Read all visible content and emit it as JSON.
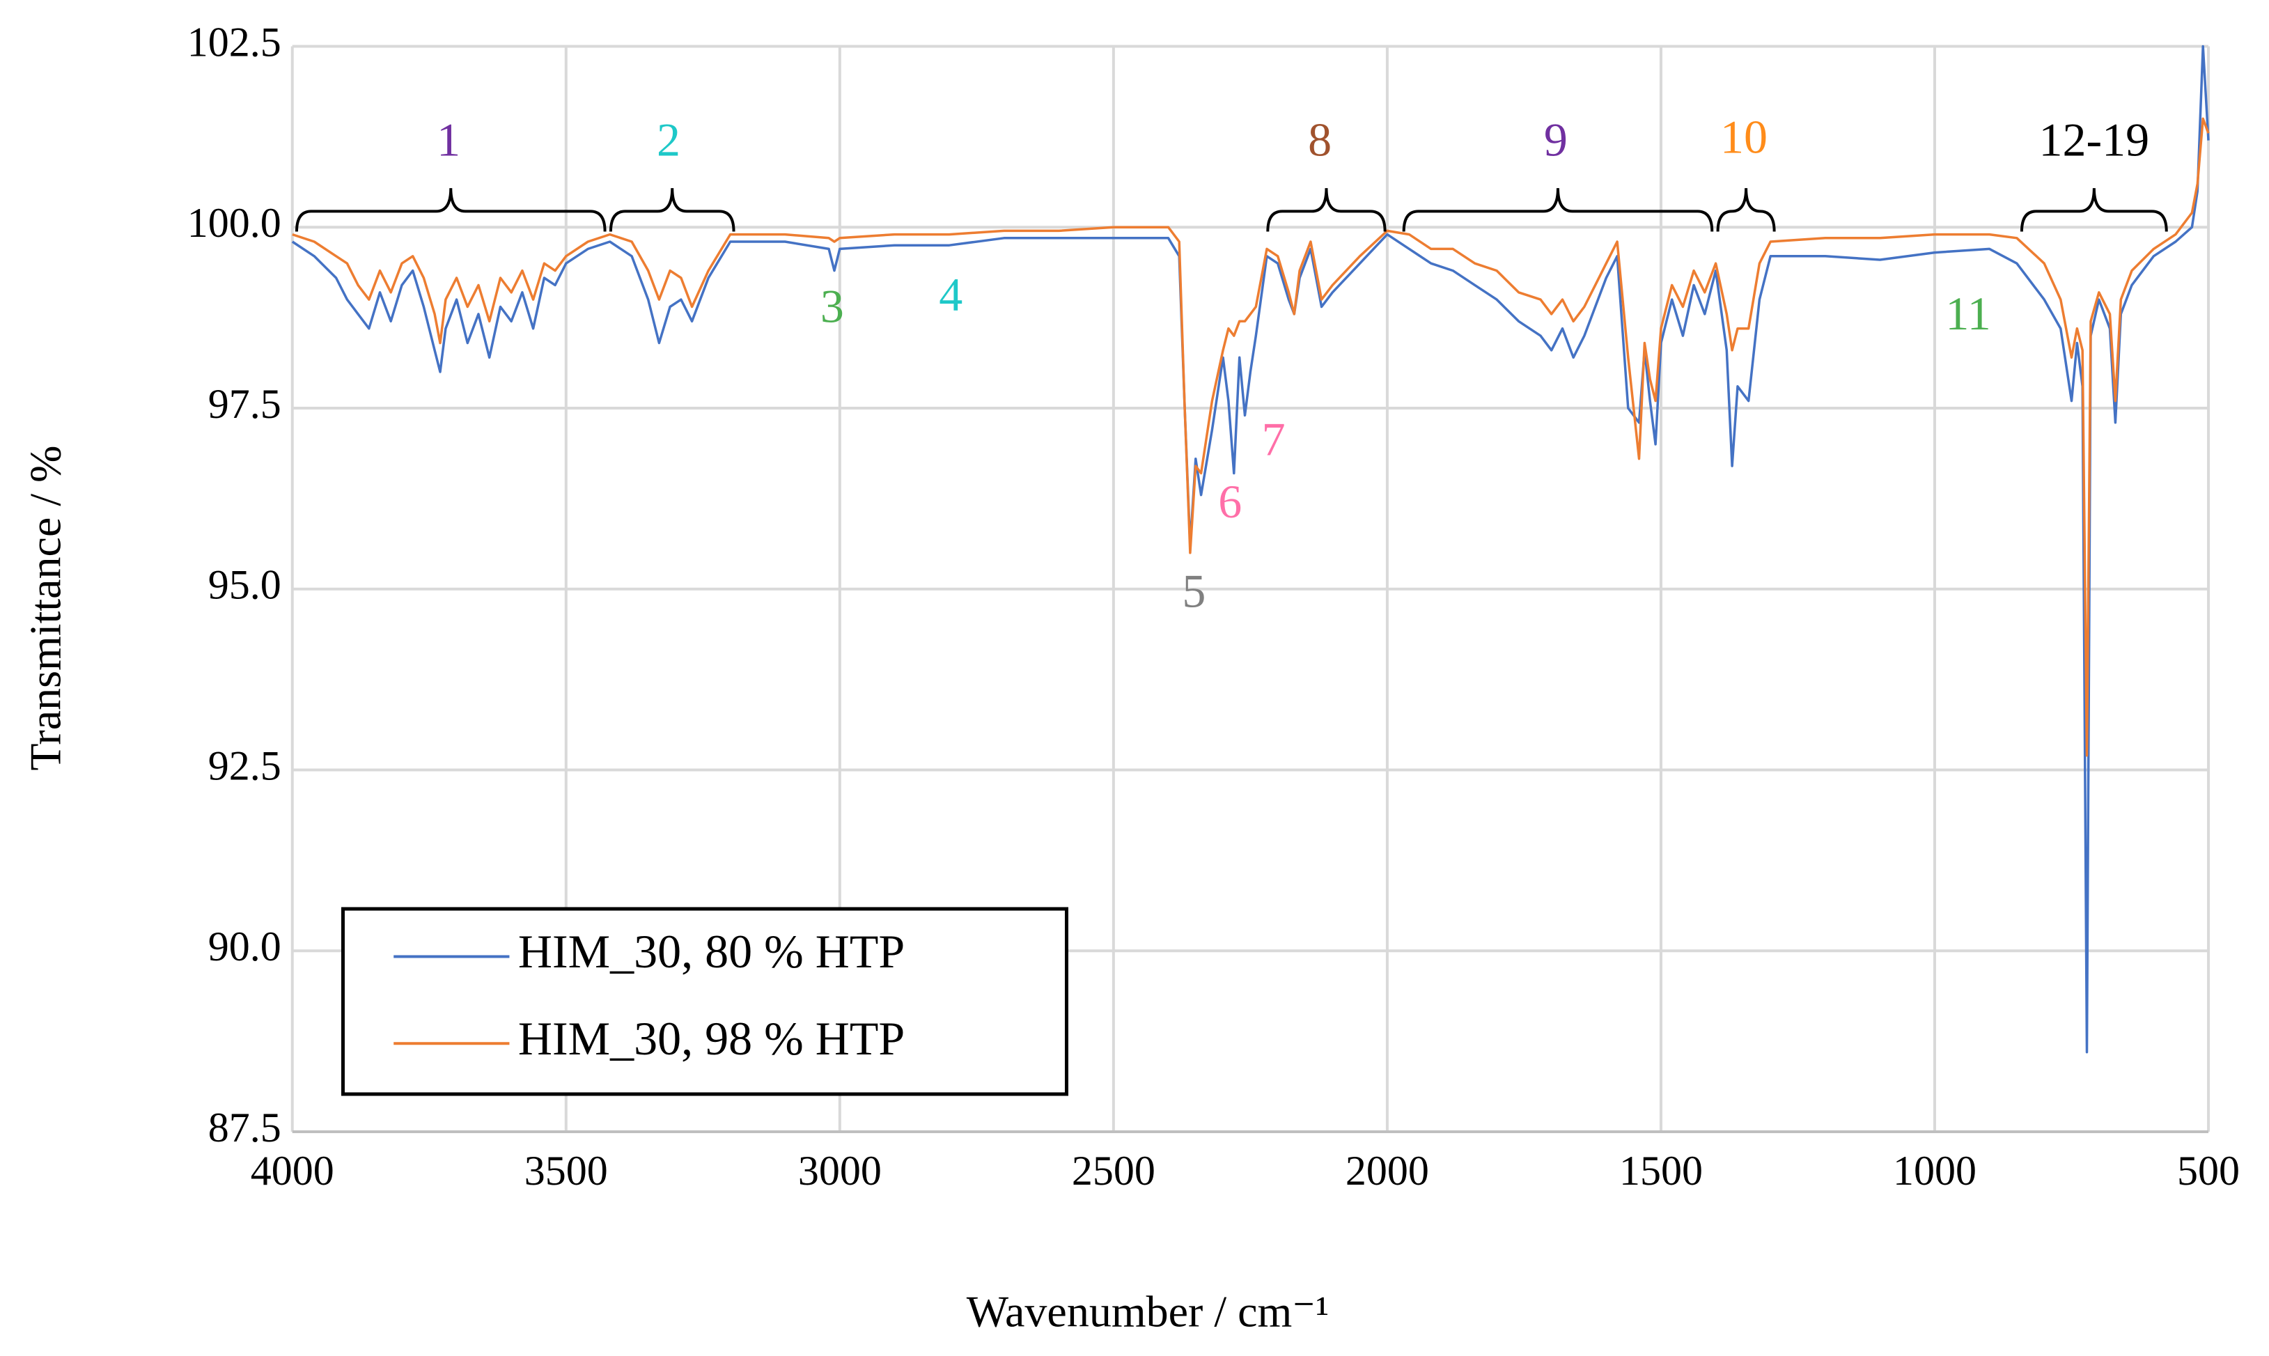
{
  "chart_data": {
    "type": "line",
    "xlabel": "Wavenumber / cm⁻¹",
    "ylabel": "Transmittance / %",
    "x_reversed": true,
    "grid": true,
    "legend": "lower left",
    "xlim": [
      4000,
      500
    ],
    "xticks": [
      4000,
      3500,
      3000,
      2500,
      2000,
      1500,
      1000,
      500
    ],
    "ylim": [
      87.5,
      102.5
    ],
    "yticks": [
      87.5,
      {
        "value": 90,
        "label": "90.0"
      },
      92.5,
      {
        "value": 95,
        "label": "95.0"
      },
      97.5,
      {
        "value": 100,
        "label": "100.0"
      },
      102.5
    ],
    "annotations": [
      {
        "text": "1",
        "color": "#7030a0"
      },
      {
        "text": "2",
        "color": "#1ec8c8"
      },
      {
        "text": "3",
        "color": "#4caf50"
      },
      {
        "text": "4",
        "color": "#1ec8c8"
      },
      {
        "text": "5",
        "color": "#808080"
      },
      {
        "text": "6",
        "color": "#ff6fa8"
      },
      {
        "text": "7",
        "color": "#ff6fa8"
      },
      {
        "text": "8",
        "color": "#a0522d"
      },
      {
        "text": "9",
        "color": "#7030a0"
      },
      {
        "text": "10",
        "color": "#ff8c1a"
      },
      {
        "text": "11",
        "color": "#4caf50"
      },
      {
        "text": "12-19",
        "color": "#000000"
      }
    ],
    "x": [
      4000,
      3960,
      3920,
      3900,
      3880,
      3860,
      3840,
      3820,
      3800,
      3780,
      3760,
      3740,
      3730,
      3720,
      3700,
      3680,
      3660,
      3640,
      3620,
      3600,
      3580,
      3560,
      3540,
      3520,
      3500,
      3460,
      3420,
      3380,
      3350,
      3330,
      3310,
      3290,
      3270,
      3240,
      3200,
      3100,
      3020,
      3010,
      3000,
      2900,
      2800,
      2700,
      2600,
      2500,
      2400,
      2380,
      2370,
      2360,
      2350,
      2340,
      2320,
      2300,
      2290,
      2280,
      2270,
      2260,
      2250,
      2240,
      2220,
      2200,
      2180,
      2170,
      2160,
      2140,
      2120,
      2100,
      2050,
      2000,
      1960,
      1920,
      1880,
      1840,
      1800,
      1760,
      1720,
      1700,
      1680,
      1660,
      1640,
      1620,
      1600,
      1580,
      1560,
      1540,
      1530,
      1520,
      1510,
      1500,
      1480,
      1460,
      1440,
      1420,
      1400,
      1380,
      1370,
      1360,
      1340,
      1320,
      1300,
      1200,
      1100,
      1000,
      900,
      850,
      800,
      770,
      750,
      740,
      730,
      722,
      715,
      700,
      680,
      670,
      660,
      640,
      600,
      560,
      530,
      520,
      510,
      500
    ],
    "series": [
      {
        "name": "HIM_30, 80 % HTP",
        "color": "#4472c4",
        "values": [
          99.8,
          99.6,
          99.3,
          99.0,
          98.8,
          98.6,
          99.1,
          98.7,
          99.2,
          99.4,
          98.9,
          98.3,
          98.0,
          98.6,
          99.0,
          98.4,
          98.8,
          98.2,
          98.9,
          98.7,
          99.1,
          98.6,
          99.3,
          99.2,
          99.5,
          99.7,
          99.8,
          99.6,
          99.0,
          98.4,
          98.9,
          99.0,
          98.7,
          99.3,
          99.8,
          99.8,
          99.7,
          99.4,
          99.7,
          99.75,
          99.75,
          99.85,
          99.85,
          99.85,
          99.85,
          99.6,
          97.5,
          95.6,
          96.8,
          96.3,
          97.2,
          98.2,
          97.6,
          96.6,
          98.2,
          97.4,
          98.0,
          98.5,
          99.6,
          99.5,
          99.0,
          98.8,
          99.3,
          99.7,
          98.9,
          99.1,
          99.5,
          99.9,
          99.7,
          99.5,
          99.4,
          99.2,
          99.0,
          98.7,
          98.5,
          98.3,
          98.6,
          98.2,
          98.5,
          98.9,
          99.3,
          99.6,
          97.5,
          97.3,
          98.3,
          97.6,
          97.0,
          98.4,
          99.0,
          98.5,
          99.2,
          98.8,
          99.4,
          98.3,
          96.7,
          97.8,
          97.6,
          99.0,
          99.6,
          99.6,
          99.55,
          99.65,
          99.7,
          99.5,
          99.0,
          98.6,
          97.6,
          98.4,
          97.8,
          88.6,
          98.5,
          99.0,
          98.6,
          97.3,
          98.8,
          99.2,
          99.6,
          99.8,
          100.0,
          100.5,
          102.5,
          101.2
        ]
      },
      {
        "name": "HIM_30, 98 % HTP",
        "color": "#ed7d31",
        "values": [
          99.9,
          99.8,
          99.6,
          99.5,
          99.2,
          99.0,
          99.4,
          99.1,
          99.5,
          99.6,
          99.3,
          98.8,
          98.4,
          99.0,
          99.3,
          98.9,
          99.2,
          98.7,
          99.3,
          99.1,
          99.4,
          99.0,
          99.5,
          99.4,
          99.6,
          99.8,
          99.9,
          99.8,
          99.4,
          99.0,
          99.4,
          99.3,
          98.9,
          99.4,
          99.9,
          99.9,
          99.85,
          99.8,
          99.85,
          99.9,
          99.9,
          99.95,
          99.95,
          100.0,
          100.0,
          99.8,
          97.5,
          95.5,
          96.7,
          96.6,
          97.6,
          98.3,
          98.6,
          98.5,
          98.7,
          98.7,
          98.8,
          98.9,
          99.7,
          99.6,
          99.1,
          98.8,
          99.4,
          99.8,
          99.0,
          99.2,
          99.6,
          99.95,
          99.9,
          99.7,
          99.7,
          99.5,
          99.4,
          99.1,
          99.0,
          98.8,
          99.0,
          98.7,
          98.9,
          99.2,
          99.5,
          99.8,
          98.2,
          96.8,
          98.4,
          97.9,
          97.6,
          98.6,
          99.2,
          98.9,
          99.4,
          99.1,
          99.5,
          98.8,
          98.3,
          98.6,
          98.6,
          99.5,
          99.8,
          99.85,
          99.85,
          99.9,
          99.9,
          99.85,
          99.5,
          99.0,
          98.2,
          98.6,
          98.3,
          92.7,
          98.7,
          99.1,
          98.8,
          97.6,
          99.0,
          99.4,
          99.7,
          99.9,
          100.2,
          100.6,
          101.5,
          101.3
        ]
      }
    ]
  }
}
